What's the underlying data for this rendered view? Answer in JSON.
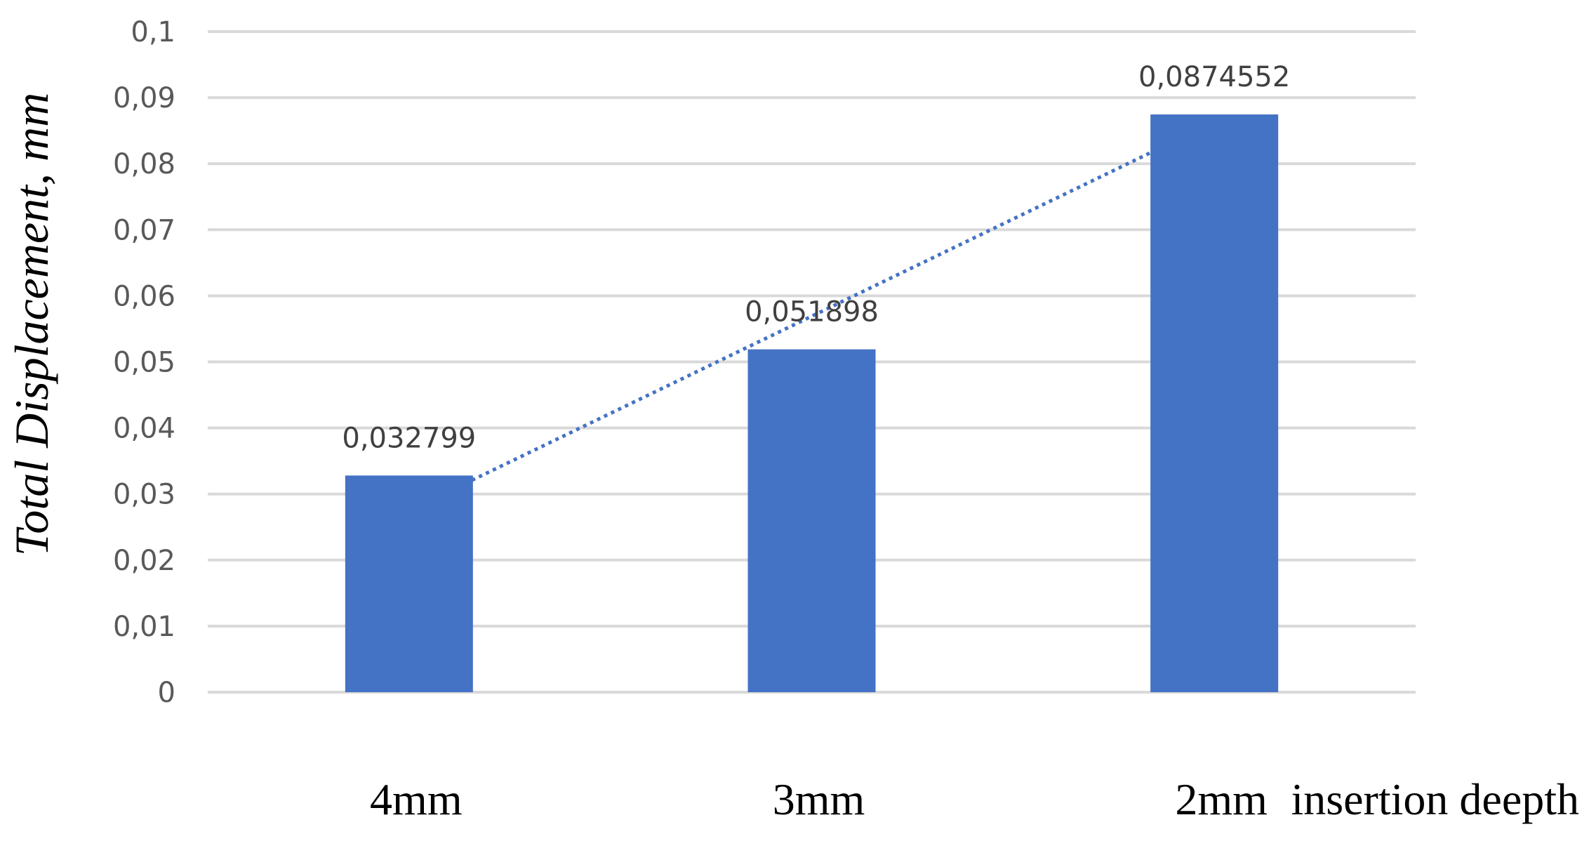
{
  "chart_data": {
    "type": "bar",
    "categories": [
      "4mm",
      "3mm",
      "2mm"
    ],
    "values": [
      0.032799,
      0.051898,
      0.0874552
    ],
    "data_labels": [
      "0,032799",
      "0,051898",
      "0,0874552"
    ],
    "xlabel": "insertion deepth",
    "ylabel": "Total Displacement, mm",
    "ylim": [
      0,
      0.1
    ],
    "yticks": [
      "0",
      "0,01",
      "0,02",
      "0,03",
      "0,04",
      "0,05",
      "0,06",
      "0,07",
      "0,08",
      "0,09",
      "0,1"
    ],
    "grid": true,
    "trendline": "linear, dotted",
    "colors": {
      "bar": "#4472C4",
      "trendline": "#4472C4",
      "grid": "#D9D9D9"
    }
  }
}
